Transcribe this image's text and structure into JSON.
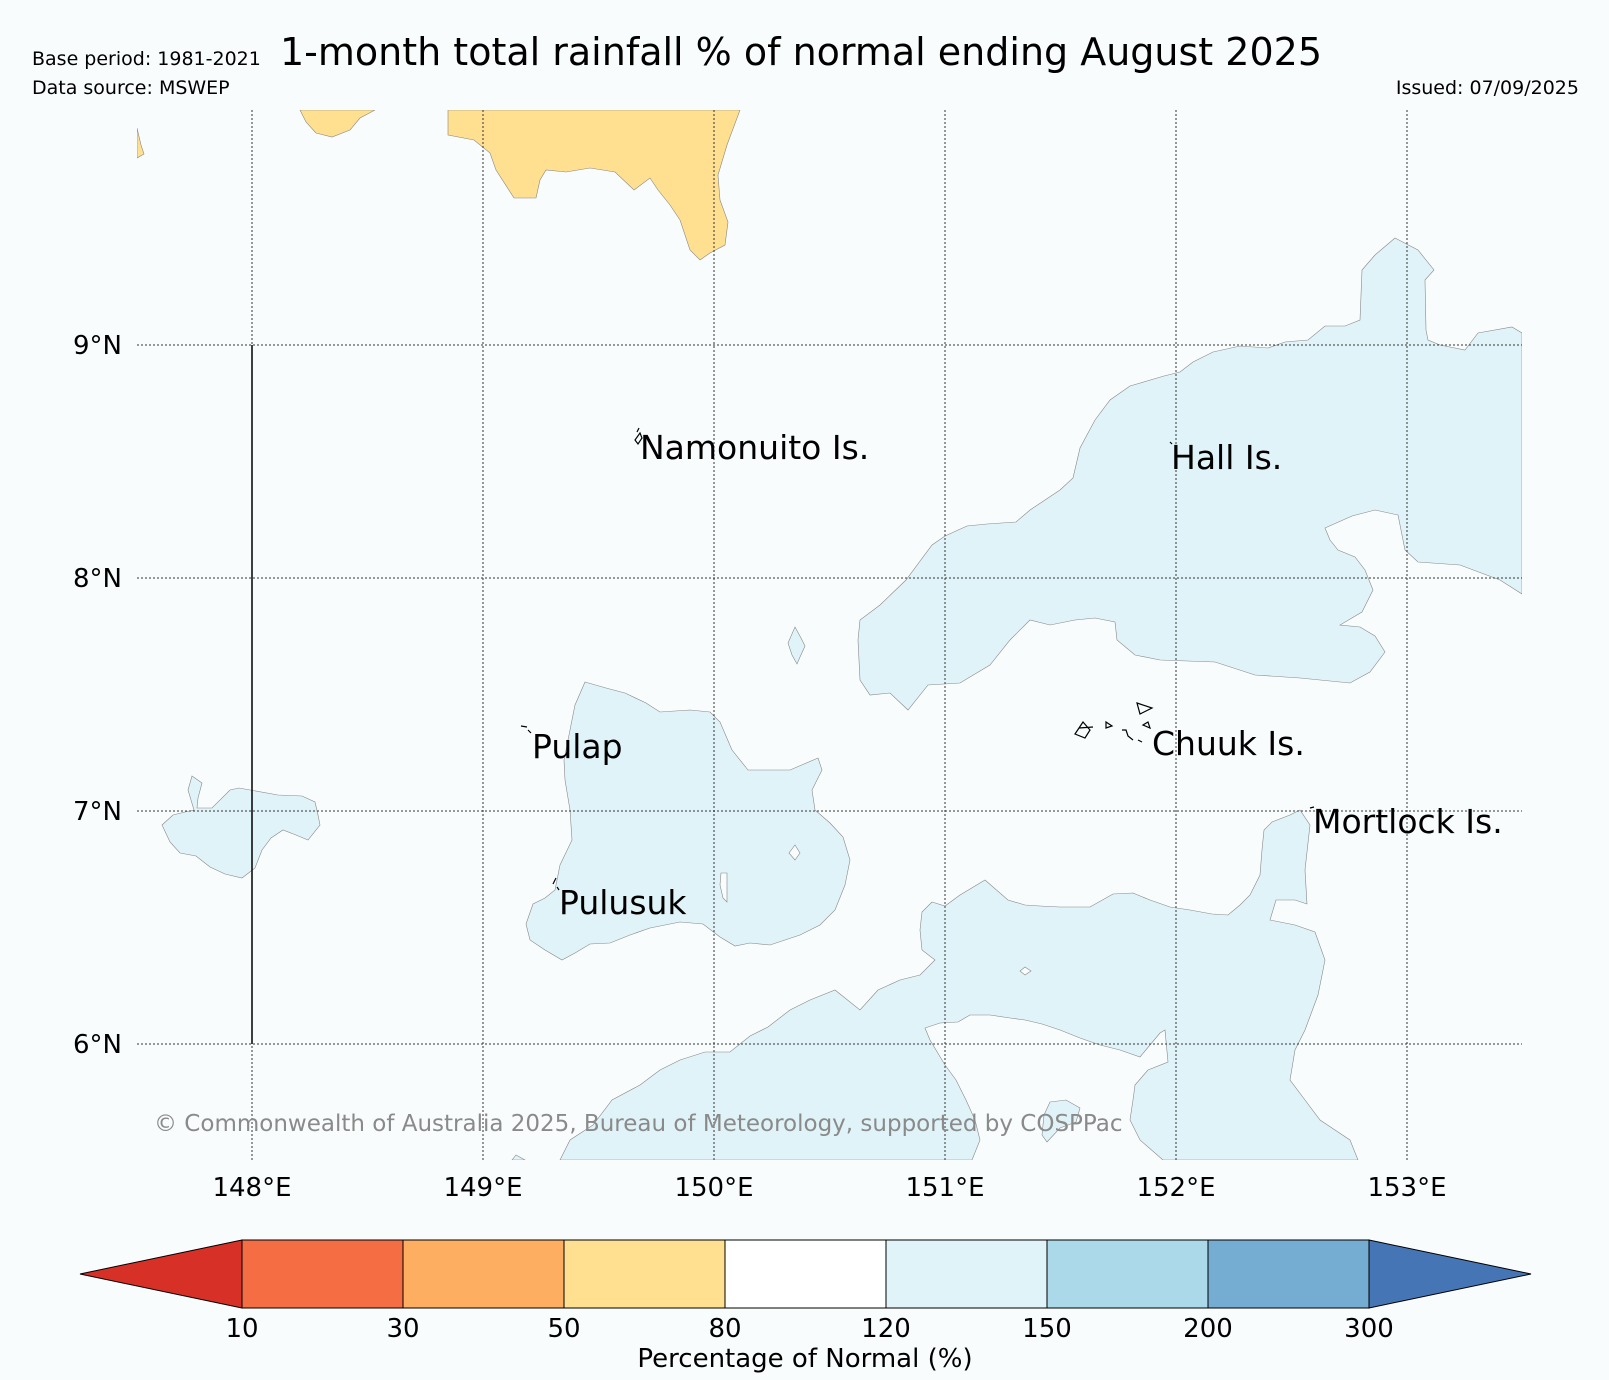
{
  "header": {
    "base_period": "Base period: 1981-2021",
    "data_source": "Data source: MSWEP",
    "title": "1-month total rainfall % of normal ending August 2025",
    "issued": "Issued: 07/09/2025"
  },
  "map": {
    "lat_labels": [
      "9°N",
      "8°N",
      "7°N",
      "6°N"
    ],
    "lon_labels": [
      "148°E",
      "149°E",
      "150°E",
      "151°E",
      "152°E",
      "153°E"
    ],
    "places": [
      "Namonuito Is.",
      "Hall Is.",
      "Pulap",
      "Chuuk Is.",
      "Mortlock Is.",
      "Pulusuk"
    ],
    "copyright": "© Commonwealth of Australia 2025, Bureau of Meteorology, supported by COSPPac"
  },
  "colorbar": {
    "ticks": [
      "10",
      "30",
      "50",
      "80",
      "120",
      "150",
      "200",
      "300"
    ],
    "label": "Percentage of Normal (%)",
    "colors": {
      "below_10": "#d73027",
      "10_30": "#f46d43",
      "30_50": "#fdae61",
      "50_80": "#fee090",
      "80_120": "#ffffff",
      "120_150": "#e0f3f8",
      "150_200": "#abd9e9",
      "200_300": "#74add1",
      "above_300": "#4575b4"
    }
  }
}
